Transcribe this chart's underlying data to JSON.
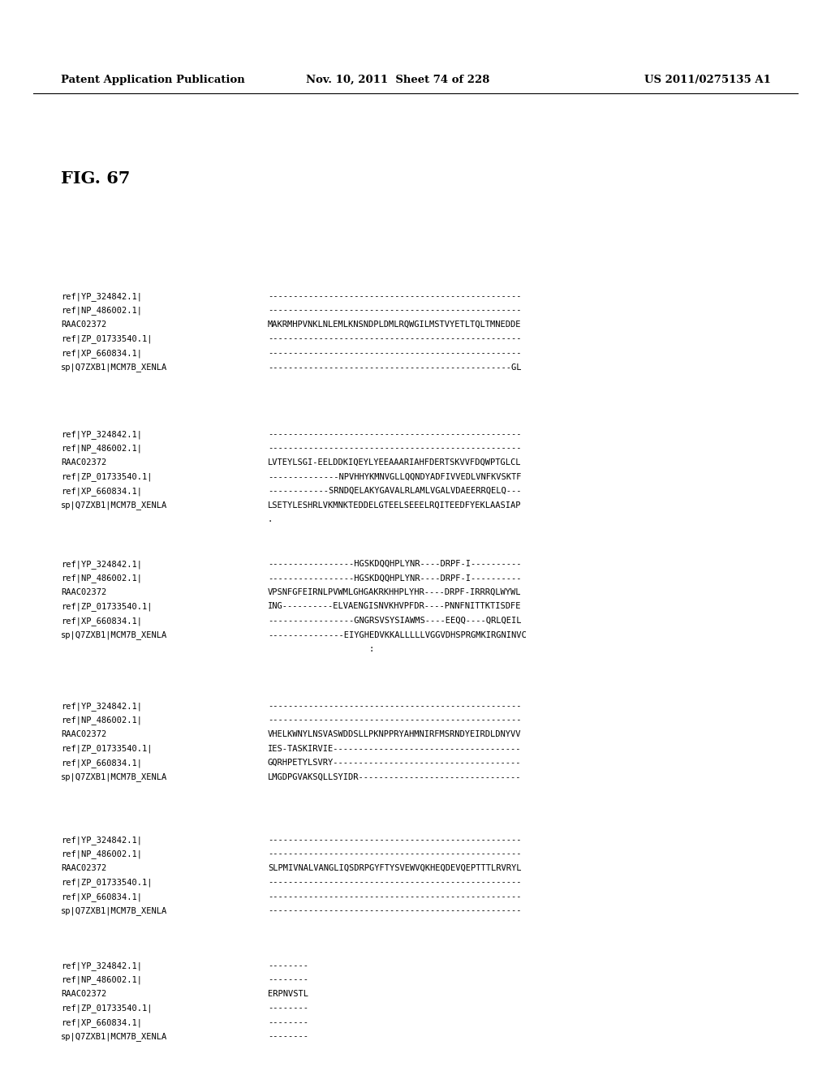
{
  "header_left": "Patent Application Publication",
  "header_middle": "Nov. 10, 2011  Sheet 74 of 228",
  "header_right": "US 2011/0275135 A1",
  "figure_label": "FIG. 67",
  "background_color": "#ffffff",
  "text_color": "#000000",
  "blocks": [
    {
      "rows": [
        {
          "label": "ref|YP_324842.1|",
          "sequence": "--------------------------------------------------"
        },
        {
          "label": "ref|NP_486002.1|",
          "sequence": "--------------------------------------------------"
        },
        {
          "label": "RAAC02372",
          "sequence": "MAKRMHPVNKLNLEMLKNSNDPLDMLRQWGILMSTVYETLTQLTMNEDDE"
        },
        {
          "label": "ref|ZP_01733540.1|",
          "sequence": "--------------------------------------------------"
        },
        {
          "label": "ref|XP_660834.1|",
          "sequence": "--------------------------------------------------"
        },
        {
          "label": "sp|Q7ZXB1|MCM7B_XENLA",
          "sequence": "------------------------------------------------GL"
        }
      ],
      "annotation": null
    },
    {
      "rows": [
        {
          "label": "ref|YP_324842.1|",
          "sequence": "--------------------------------------------------"
        },
        {
          "label": "ref|NP_486002.1|",
          "sequence": "--------------------------------------------------"
        },
        {
          "label": "RAAC02372",
          "sequence": "LVTEYLSGI-EELDDKIQEYLYEEAAARIAHFDERTSKVVFDQWPTGLCL"
        },
        {
          "label": "ref|ZP_01733540.1|",
          "sequence": "--------------NPVHHYKMNVGLLQQNDYADFIVVEDLVNFKVSKTF"
        },
        {
          "label": "ref|XP_660834.1|",
          "sequence": "------------SRNDQELAKYGAVALRLAMLVGALVDAEERRQELQ---"
        },
        {
          "label": "sp|Q7ZXB1|MCM7B_XENLA",
          "sequence": "LSETYLESHRLVKMNKTEDDELGTEELSEEELRQITEEDFYEKLAASIAP"
        }
      ],
      "annotation": "."
    },
    {
      "rows": [
        {
          "label": "ref|YP_324842.1|",
          "sequence": "-----------------HGSKDQQHPLYNR----DRPF-I----------"
        },
        {
          "label": "ref|NP_486002.1|",
          "sequence": "-----------------HGSKDQQHPLYNR----DRPF-I----------"
        },
        {
          "label": "RAAC02372",
          "sequence": "VPSNFGFEIRNLPVWMLGHGAKRKHHPLYHR----DRPF-IRRRQLWYWL"
        },
        {
          "label": "ref|ZP_01733540.1|",
          "sequence": "ING----------ELVAENGISNVKHVPFDR----PNNFNITTKTISDFE"
        },
        {
          "label": "ref|XP_660834.1|",
          "sequence": "-----------------GNGRSVSYSIAWMS----EEQQ----QRLQEIL"
        },
        {
          "label": "sp|Q7ZXB1|MCM7B_XENLA",
          "sequence": "---------------EIYGHEDVKKALLLLLVGGVDHSPRGMKIRGNINVC"
        }
      ],
      "annotation": "                    :"
    },
    {
      "rows": [
        {
          "label": "ref|YP_324842.1|",
          "sequence": "--------------------------------------------------"
        },
        {
          "label": "ref|NP_486002.1|",
          "sequence": "--------------------------------------------------"
        },
        {
          "label": "RAAC02372",
          "sequence": "VHELKWNYLNSVASWDDSLLPKNPPRYAHMNIRFMSRNDYEIRDLDNYVV"
        },
        {
          "label": "ref|ZP_01733540.1|",
          "sequence": "IES-TASKIRVIE-------------------------------------"
        },
        {
          "label": "ref|XP_660834.1|",
          "sequence": "GQRHPETYLSVRY-------------------------------------"
        },
        {
          "label": "sp|Q7ZXB1|MCM7B_XENLA",
          "sequence": "LMGDPGVAKSQLLSYIDR--------------------------------"
        }
      ],
      "annotation": null
    },
    {
      "rows": [
        {
          "label": "ref|YP_324842.1|",
          "sequence": "--------------------------------------------------"
        },
        {
          "label": "ref|NP_486002.1|",
          "sequence": "--------------------------------------------------"
        },
        {
          "label": "RAAC02372",
          "sequence": "SLPMIVNALVANGLIQSDRPGYFTYSVEWVQKHEQDEVQEPTTTLRVRYL"
        },
        {
          "label": "ref|ZP_01733540.1|",
          "sequence": "--------------------------------------------------"
        },
        {
          "label": "ref|XP_660834.1|",
          "sequence": "--------------------------------------------------"
        },
        {
          "label": "sp|Q7ZXB1|MCM7B_XENLA",
          "sequence": "--------------------------------------------------"
        }
      ],
      "annotation": null
    },
    {
      "rows": [
        {
          "label": "ref|YP_324842.1|",
          "sequence": "--------"
        },
        {
          "label": "ref|NP_486002.1|",
          "sequence": "--------"
        },
        {
          "label": "RAAC02372",
          "sequence": "ERPNVSTL"
        },
        {
          "label": "ref|ZP_01733540.1|",
          "sequence": "--------"
        },
        {
          "label": "ref|XP_660834.1|",
          "sequence": "--------"
        },
        {
          "label": "sp|Q7ZXB1|MCM7B_XENLA",
          "sequence": "--------"
        }
      ],
      "annotation": null
    }
  ]
}
